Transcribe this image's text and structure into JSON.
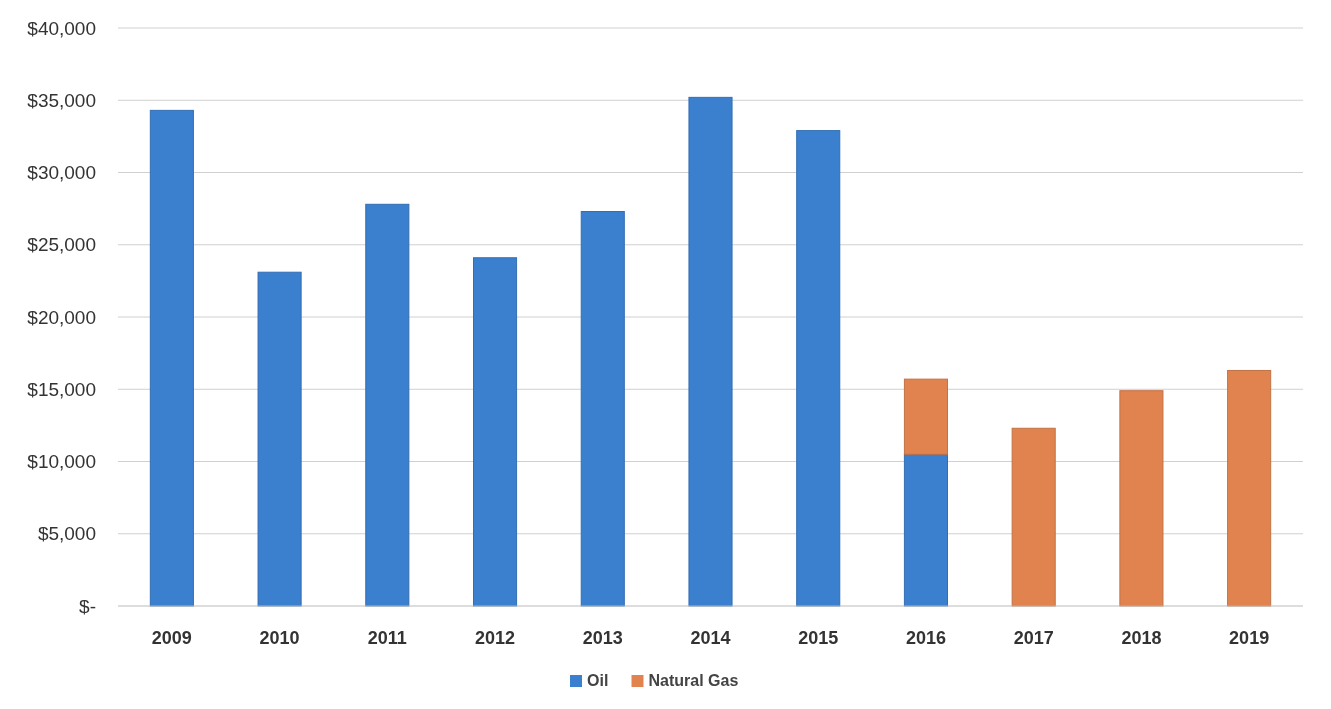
{
  "chart_data": {
    "type": "bar",
    "stacked": true,
    "categories": [
      "2009",
      "2010",
      "2011",
      "2012",
      "2013",
      "2014",
      "2015",
      "2016",
      "2017",
      "2018",
      "2019"
    ],
    "series": [
      {
        "name": "Oil",
        "color": "#3b7fcf",
        "values": [
          34300,
          23100,
          27800,
          24100,
          27300,
          35200,
          32900,
          10500,
          null,
          null,
          null
        ]
      },
      {
        "name": "Natural Gas",
        "color": "#e0834f",
        "values": [
          null,
          null,
          null,
          null,
          null,
          null,
          null,
          5200,
          12300,
          14900,
          16300
        ]
      }
    ],
    "ylim": [
      0,
      40000
    ],
    "yticks": [
      {
        "value": 0,
        "label": "$-"
      },
      {
        "value": 5000,
        "label": "$5,000"
      },
      {
        "value": 10000,
        "label": "$10,000"
      },
      {
        "value": 15000,
        "label": "$15,000"
      },
      {
        "value": 20000,
        "label": "$20,000"
      },
      {
        "value": 25000,
        "label": "$25,000"
      },
      {
        "value": 30000,
        "label": "$30,000"
      },
      {
        "value": 35000,
        "label": "$35,000"
      },
      {
        "value": 40000,
        "label": "$40,000"
      }
    ],
    "grid": "y",
    "legend": "bottom"
  }
}
